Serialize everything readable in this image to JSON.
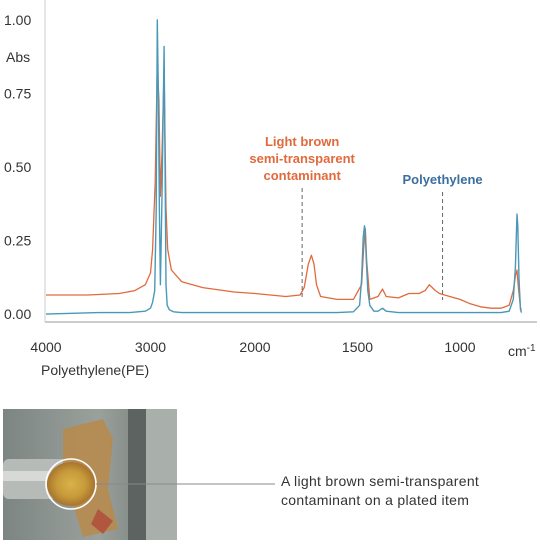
{
  "chart_data": {
    "type": "line",
    "ylabel": "Abs",
    "xlabel": "Polyethylene(PE)",
    "x_unit": "cm",
    "x_unit_sup": "-1",
    "x_ticks": [
      4000,
      3000,
      2000,
      1500,
      1000
    ],
    "y_ticks": [
      "1.00",
      "0.75",
      "0.50",
      "0.25",
      "0.00"
    ],
    "xlim": [
      4000,
      700
    ],
    "ylim": [
      -0.02,
      1.02
    ],
    "grid": false,
    "series": [
      {
        "name": "Light brown semi-transparent contaminant",
        "color": "#e06a3c",
        "x": [
          4000,
          3600,
          3300,
          3150,
          3050,
          3000,
          2980,
          2955,
          2935,
          2920,
          2905,
          2890,
          2870,
          2852,
          2835,
          2800,
          2700,
          2500,
          2200,
          2000,
          1850,
          1780,
          1760,
          1740,
          1725,
          1712,
          1700,
          1680,
          1600,
          1520,
          1480,
          1470,
          1462,
          1455,
          1440,
          1400,
          1378,
          1360,
          1300,
          1250,
          1200,
          1170,
          1150,
          1120,
          1100,
          1050,
          1000,
          950,
          900,
          850,
          800,
          760,
          740,
          730,
          722,
          715,
          705,
          700
        ],
        "y": [
          0.065,
          0.065,
          0.07,
          0.08,
          0.1,
          0.14,
          0.22,
          0.45,
          0.85,
          0.73,
          0.4,
          0.55,
          0.83,
          0.36,
          0.22,
          0.15,
          0.11,
          0.09,
          0.075,
          0.07,
          0.06,
          0.065,
          0.09,
          0.17,
          0.2,
          0.17,
          0.1,
          0.06,
          0.05,
          0.05,
          0.1,
          0.22,
          0.29,
          0.18,
          0.05,
          0.06,
          0.085,
          0.06,
          0.055,
          0.07,
          0.07,
          0.08,
          0.1,
          0.08,
          0.07,
          0.06,
          0.05,
          0.035,
          0.025,
          0.02,
          0.02,
          0.03,
          0.08,
          0.13,
          0.15,
          0.09,
          0.02,
          0.015
        ]
      },
      {
        "name": "Polyethylene",
        "color": "#4a98b8",
        "x": [
          4000,
          3500,
          3200,
          3050,
          3000,
          2980,
          2960,
          2945,
          2935,
          2925,
          2915,
          2905,
          2890,
          2870,
          2852,
          2840,
          2820,
          2780,
          2700,
          2500,
          2000,
          1800,
          1600,
          1520,
          1490,
          1480,
          1472,
          1466,
          1462,
          1458,
          1450,
          1440,
          1420,
          1400,
          1378,
          1360,
          1300,
          1200,
          1100,
          1000,
          900,
          800,
          760,
          740,
          730,
          722,
          718,
          712,
          705,
          700
        ],
        "y": [
          0.0,
          0.005,
          0.005,
          0.01,
          0.02,
          0.04,
          0.08,
          0.35,
          1.0,
          0.76,
          0.35,
          0.1,
          0.4,
          0.91,
          0.1,
          0.03,
          0.015,
          0.008,
          0.005,
          0.005,
          0.005,
          0.005,
          0.005,
          0.008,
          0.03,
          0.12,
          0.26,
          0.3,
          0.28,
          0.2,
          0.08,
          0.03,
          0.01,
          0.01,
          0.02,
          0.01,
          0.005,
          0.005,
          0.005,
          0.005,
          0.005,
          0.005,
          0.01,
          0.05,
          0.16,
          0.34,
          0.3,
          0.12,
          0.015,
          0.005
        ]
      }
    ],
    "annotations": [
      {
        "lines": [
          "Light brown",
          "semi-transparent",
          "contaminant"
        ],
        "color": "#e06a3c",
        "x": 1770
      },
      {
        "lines": [
          "Polyethylene"
        ],
        "color": "#3a6fa0",
        "x": 1085
      }
    ]
  },
  "photo": {
    "caption_lines": [
      "A light brown semi-transparent",
      "contaminant on a plated item"
    ]
  }
}
